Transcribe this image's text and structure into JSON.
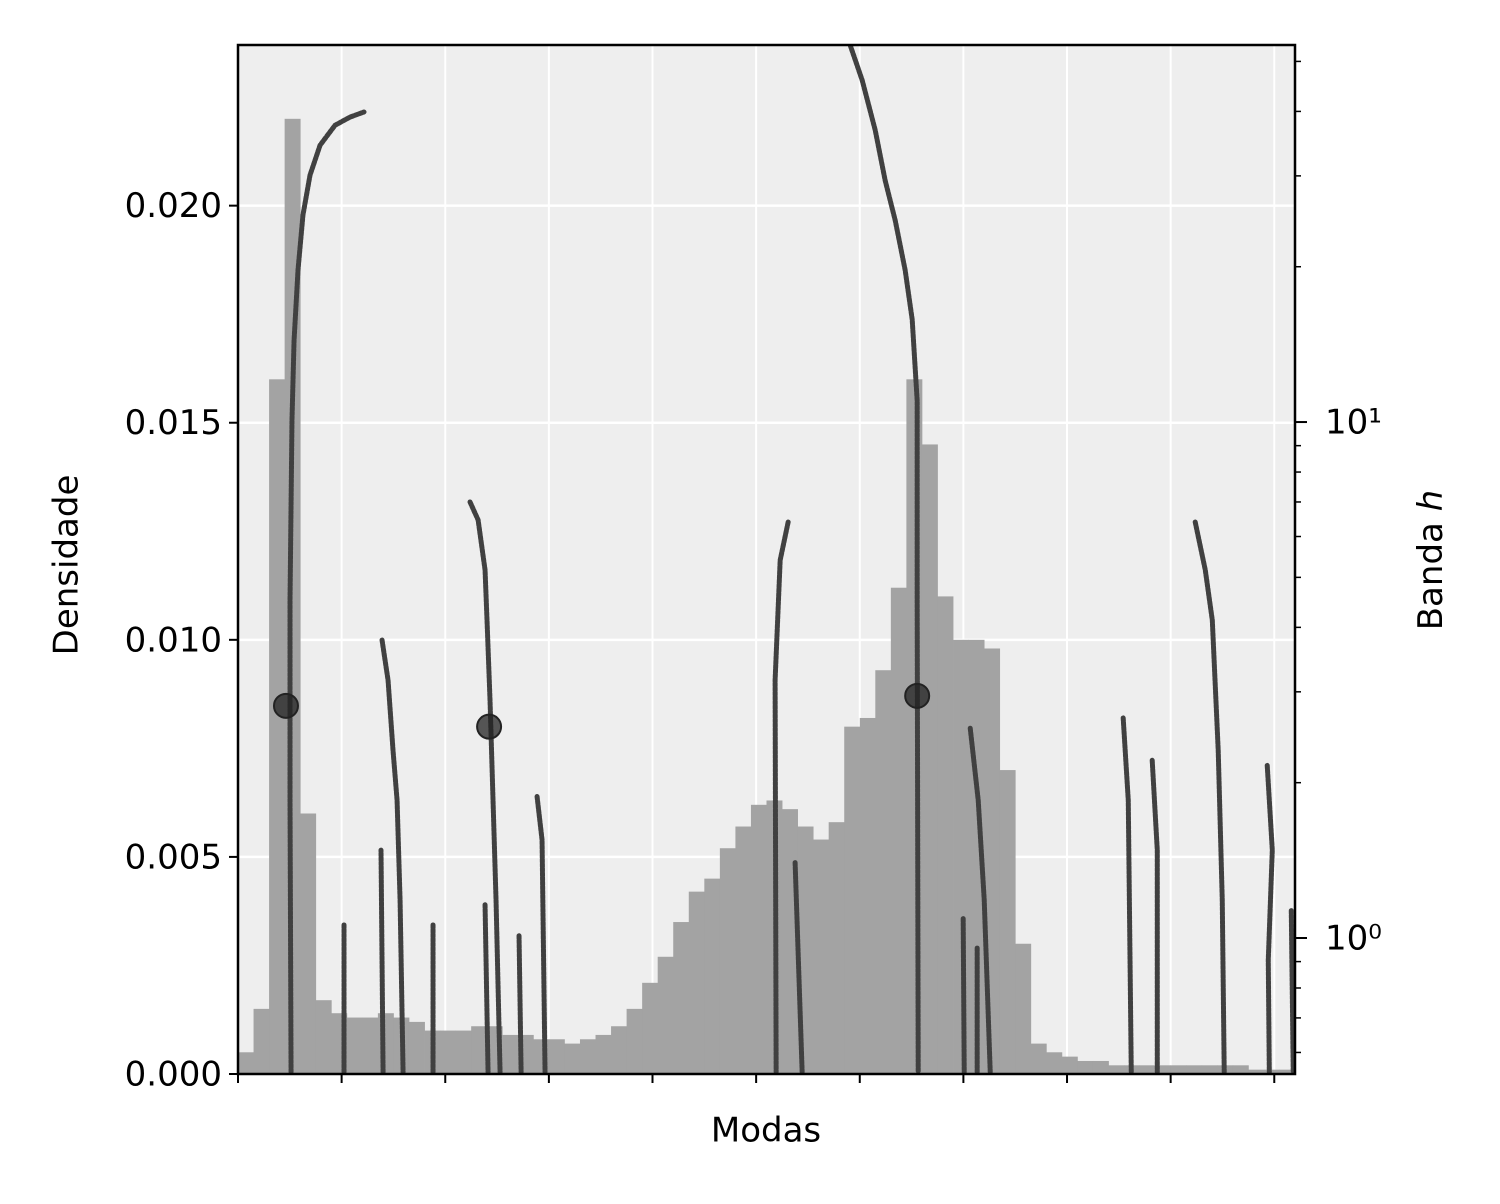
{
  "chart_data": {
    "type": "histogram",
    "xlabel": "Modas",
    "ylabel": "Densidade",
    "y2label": [
      "Banda",
      "h"
    ],
    "xlim": [
      0,
      10.2
    ],
    "xticks": [
      0,
      1,
      2,
      3,
      4,
      5,
      6,
      7,
      8,
      9,
      10
    ],
    "ylim": [
      0,
      0.0237
    ],
    "yticks": [
      {
        "value": 0,
        "label": "0.000"
      },
      {
        "value": 0.005,
        "label": "0.005"
      },
      {
        "value": 0.01,
        "label": "0.010"
      },
      {
        "value": 0.015,
        "label": "0.015"
      },
      {
        "value": 0.02,
        "label": "0.020"
      }
    ],
    "y2lim": [
      0.545,
      53.8
    ],
    "y2log": true,
    "y2ticks": [
      {
        "value": 1,
        "label": "10⁰"
      },
      {
        "value": 10,
        "label": "10¹"
      }
    ],
    "y2minorticks": [
      0.6,
      0.7,
      0.8,
      0.9,
      2,
      3,
      4,
      5,
      6,
      7,
      8,
      9,
      20,
      30,
      40,
      50
    ],
    "grid": true,
    "background": "#eeeeee",
    "color": "#a3a3a3",
    "bins": [
      0,
      0.15,
      0.3,
      0.45,
      0.6,
      0.75,
      0.9,
      1.05,
      1.2,
      1.35,
      1.5,
      1.65,
      1.8,
      1.95,
      2.1,
      2.25,
      2.4,
      2.55,
      2.7,
      2.85,
      3,
      3.15,
      3.3,
      3.45,
      3.6,
      3.75,
      3.9,
      4.05,
      4.2,
      4.35,
      4.5,
      4.65,
      4.8,
      4.95,
      5.1,
      5.25,
      5.4,
      5.55,
      5.7,
      5.85,
      6,
      6.15,
      6.3,
      6.45,
      6.6,
      6.75,
      6.9,
      7.05,
      7.2,
      7.35,
      7.5,
      7.65,
      7.8,
      7.95,
      8.1,
      8.25,
      8.4,
      8.55,
      8.7,
      8.85,
      9,
      9.15,
      9.3,
      9.45,
      9.6,
      9.75,
      9.9,
      10.05,
      10.2
    ],
    "values": [
      0.0005,
      0.0015,
      0.016,
      0.022,
      0.006,
      0.0017,
      0.0014,
      0.0013,
      0.0013,
      0.0014,
      0.0013,
      0.0012,
      0.001,
      0.001,
      0.001,
      0.0011,
      0.0011,
      0.0009,
      0.0009,
      0.0008,
      0.0008,
      0.0007,
      0.0008,
      0.0009,
      0.0011,
      0.0015,
      0.0021,
      0.0027,
      0.0035,
      0.0042,
      0.0045,
      0.0052,
      0.0057,
      0.0062,
      0.0063,
      0.0061,
      0.0057,
      0.0054,
      0.0058,
      0.008,
      0.0082,
      0.0093,
      0.0112,
      0.016,
      0.0145,
      0.011,
      0.01,
      0.01,
      0.0098,
      0.007,
      0.003,
      0.0007,
      0.0005,
      0.0004,
      0.0003,
      0.0003,
      0.0002,
      0.0002,
      0.0002,
      0.0002,
      0.0002,
      0.0002,
      0.0002,
      0.0002,
      0.0002,
      0.0001,
      0.0001,
      0.0001
    ],
    "trace_color": "#404040",
    "series": [
      {
        "axis": "y2",
        "x": [
          0.512,
          0.502,
          0.502,
          0.521,
          0.541,
          0.579,
          0.627,
          0.695,
          0.792,
          0.936,
          1.081,
          1.216
        ],
        "values": [
          0.55,
          1.85,
          4.52,
          10.1,
          14.4,
          19.7,
          25.2,
          30.1,
          34.4,
          37.6,
          39.0,
          39.9
        ]
      },
      {
        "axis": "y2",
        "x": [
          1.023,
          1.023
        ],
        "values": [
          0.55,
          1.06
        ]
      },
      {
        "axis": "y2",
        "x": [
          1.4,
          1.38
        ],
        "values": [
          0.55,
          1.48
        ]
      },
      {
        "axis": "y2",
        "x": [
          1.39,
          1.448,
          1.496,
          1.535,
          1.564,
          1.593
        ],
        "values": [
          3.78,
          3.16,
          2.31,
          1.85,
          1.185,
          0.55
        ]
      },
      {
        "axis": "y2",
        "x": [
          1.882,
          1.882
        ],
        "values": [
          1.06,
          0.55
        ]
      },
      {
        "axis": "y2",
        "x": [
          2.239,
          2.317,
          2.384,
          2.403,
          2.432,
          2.461,
          2.49,
          2.529
        ],
        "values": [
          7.0,
          6.46,
          5.17,
          4.13,
          2.89,
          1.85,
          1.185,
          0.55
        ]
      },
      {
        "axis": "y2",
        "x": [
          2.384,
          2.413
        ],
        "values": [
          1.16,
          0.55
        ]
      },
      {
        "axis": "y2",
        "x": [
          2.712,
          2.732
        ],
        "values": [
          1.01,
          0.55
        ]
      },
      {
        "axis": "y2",
        "x": [
          2.886,
          2.934,
          2.963
        ],
        "values": [
          1.88,
          1.55,
          0.55
        ]
      },
      {
        "axis": "y2",
        "x": [
          5.309,
          5.232,
          5.183,
          5.193
        ],
        "values": [
          6.4,
          5.4,
          3.16,
          0.55
        ]
      },
      {
        "axis": "y2",
        "x": [
          5.376,
          5.444
        ],
        "values": [
          1.4,
          0.55
        ]
      },
      {
        "axis": "y2",
        "x": [
          5.907,
          6.023,
          6.149,
          6.245,
          6.342,
          6.438,
          6.506,
          6.554,
          6.554,
          6.564
        ],
        "values": [
          53.8,
          46.0,
          36.8,
          29.4,
          24.6,
          19.7,
          15.8,
          11.0,
          4.52,
          0.55
        ]
      },
      {
        "axis": "y2",
        "x": [
          6.998,
          7.008
        ],
        "values": [
          1.09,
          0.55
        ]
      },
      {
        "axis": "y2",
        "x": [
          7.066,
          7.143,
          7.201,
          7.259
        ],
        "values": [
          2.55,
          1.85,
          1.185,
          0.55
        ]
      },
      {
        "axis": "y2",
        "x": [
          7.133,
          7.133
        ],
        "values": [
          0.956,
          0.55
        ]
      },
      {
        "axis": "y2",
        "x": [
          8.542,
          8.591,
          8.62
        ],
        "values": [
          2.67,
          1.85,
          0.55
        ]
      },
      {
        "axis": "y2",
        "x": [
          8.822,
          8.871,
          8.871
        ],
        "values": [
          2.21,
          1.48,
          0.55
        ]
      },
      {
        "axis": "y2",
        "x": [
          9.237,
          9.334,
          9.402,
          9.459,
          9.498,
          9.517
        ],
        "values": [
          6.4,
          5.17,
          4.13,
          2.31,
          1.185,
          0.55
        ]
      },
      {
        "axis": "y2",
        "x": [
          9.932,
          9.981,
          9.942,
          9.952
        ],
        "values": [
          2.16,
          1.48,
          0.906,
          0.55
        ]
      },
      {
        "axis": "y2",
        "x": [
          10.164,
          10.183
        ],
        "values": [
          1.13,
          0.55
        ]
      }
    ],
    "modes": {
      "color": "#222222",
      "x": [
        0.463,
        2.423,
        6.554
      ],
      "values": [
        0.00848,
        0.008,
        0.00871
      ]
    }
  }
}
